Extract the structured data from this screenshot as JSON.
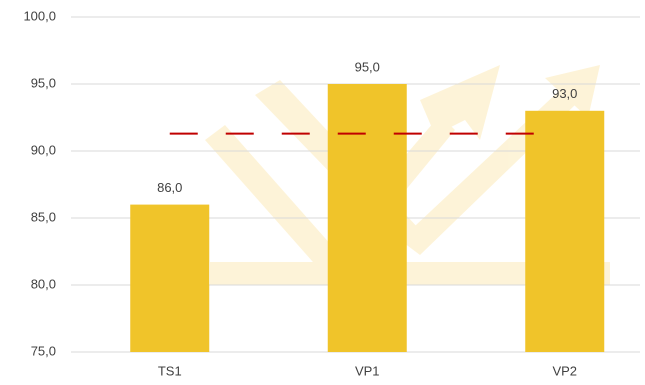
{
  "chart_data": {
    "type": "bar",
    "categories": [
      "TS1",
      "VP1",
      "VP2"
    ],
    "values": [
      86,
      95,
      93
    ],
    "value_labels": [
      "86,0",
      "95,0",
      "93,0"
    ],
    "color": "#f0c42a",
    "ylim": [
      75,
      100
    ],
    "yticks": [
      {
        "value": 75,
        "label": "75,0"
      },
      {
        "value": 80,
        "label": "80,0"
      },
      {
        "value": 85,
        "label": "85,0"
      },
      {
        "value": 90,
        "label": "90,0"
      },
      {
        "value": 95,
        "label": "95,0"
      },
      {
        "value": 100,
        "label": "100,0"
      }
    ],
    "grid": true,
    "reference_line": {
      "value": 91.3,
      "color": "#c00000"
    }
  }
}
